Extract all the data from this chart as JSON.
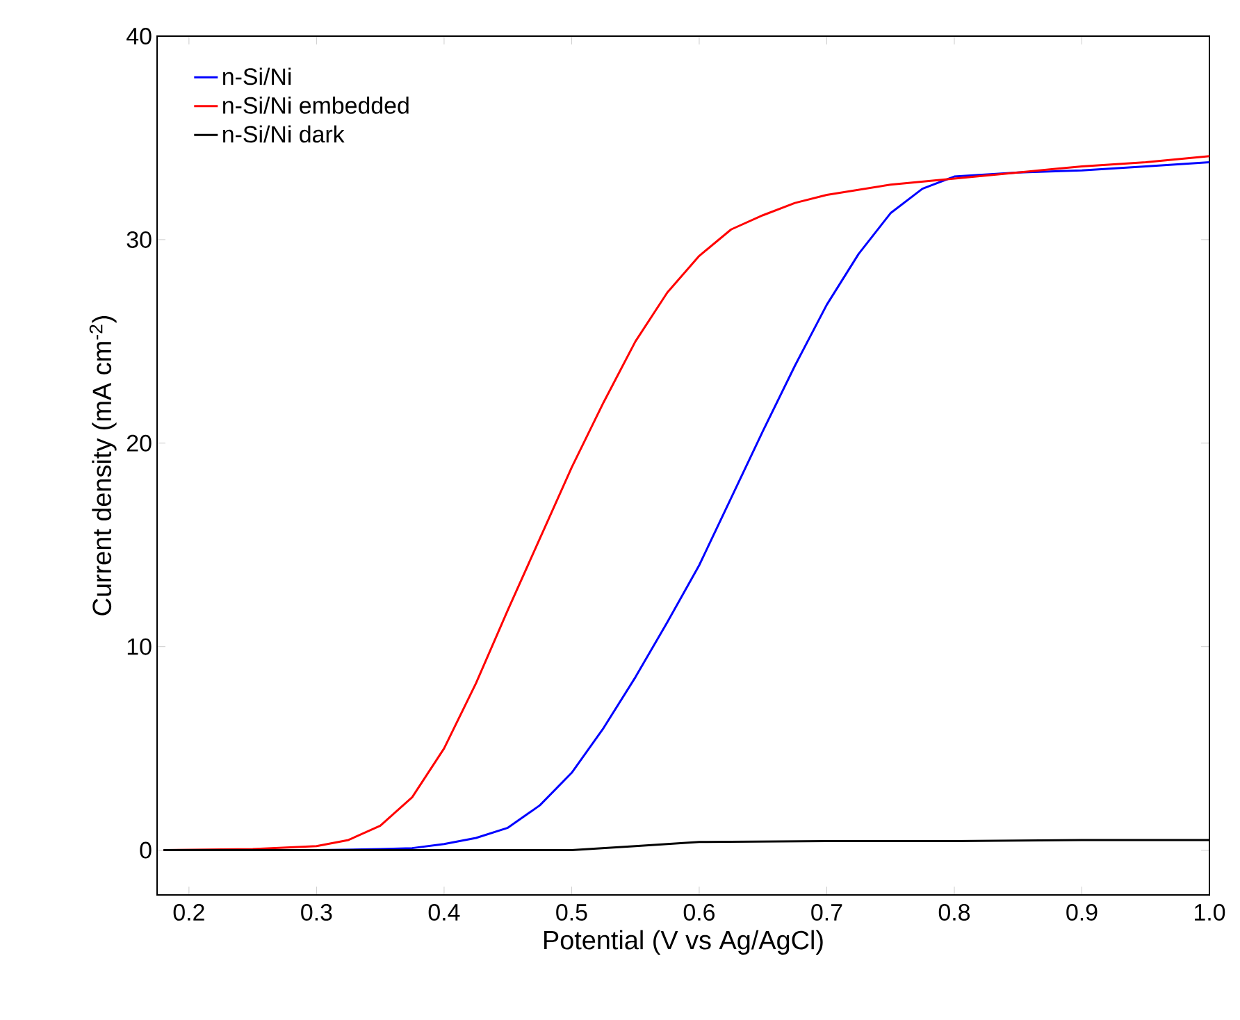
{
  "chart_data": {
    "type": "line",
    "xlabel": "Potential (V vs Ag/AgCl)",
    "ylabel": "Current density (mA cm$^{-2}$)",
    "xlim": [
      0.175,
      1.0
    ],
    "ylim": [
      -2.2,
      40
    ],
    "xticks": [
      0.2,
      0.3,
      0.4,
      0.5,
      0.6,
      0.7,
      0.8,
      0.9,
      {
        "value": 1.0,
        "label": "1.0"
      }
    ],
    "yticks": [
      0,
      10,
      20,
      30,
      40
    ],
    "legend": "top left",
    "series": [
      {
        "name": "n-Si/Ni",
        "color": "#0000ff",
        "x": [
          0.18,
          0.25,
          0.3,
          0.35,
          0.375,
          0.4,
          0.425,
          0.45,
          0.475,
          0.5,
          0.525,
          0.55,
          0.575,
          0.6,
          0.625,
          0.65,
          0.675,
          0.7,
          0.725,
          0.75,
          0.775,
          0.8,
          0.85,
          0.9,
          0.95,
          1.0
        ],
        "values": [
          0,
          0,
          0,
          0.05,
          0.1,
          0.3,
          0.6,
          1.1,
          2.2,
          3.8,
          6,
          8.5,
          11.2,
          14,
          17.3,
          20.6,
          23.8,
          26.8,
          29.3,
          31.3,
          32.5,
          33.1,
          33.3,
          33.4,
          33.6,
          33.8
        ]
      },
      {
        "name": "n-Si/Ni embedded",
        "color": "#ff0000",
        "x": [
          0.18,
          0.25,
          0.3,
          0.325,
          0.35,
          0.375,
          0.4,
          0.425,
          0.45,
          0.475,
          0.5,
          0.525,
          0.55,
          0.575,
          0.6,
          0.625,
          0.65,
          0.675,
          0.7,
          0.75,
          0.8,
          0.85,
          0.9,
          0.95,
          1.0
        ],
        "values": [
          0,
          0.05,
          0.2,
          0.5,
          1.2,
          2.6,
          5,
          8.2,
          11.8,
          15.3,
          18.8,
          22,
          25,
          27.4,
          29.2,
          30.5,
          31.2,
          31.8,
          32.2,
          32.7,
          33,
          33.3,
          33.6,
          33.8,
          34.1
        ]
      },
      {
        "name": "n-Si/Ni dark",
        "color": "#000000",
        "x": [
          0.18,
          0.5,
          0.55,
          0.6,
          0.7,
          0.8,
          0.9,
          1.0
        ],
        "values": [
          0,
          0,
          0.2,
          0.4,
          0.45,
          0.45,
          0.5,
          0.5
        ]
      }
    ]
  }
}
